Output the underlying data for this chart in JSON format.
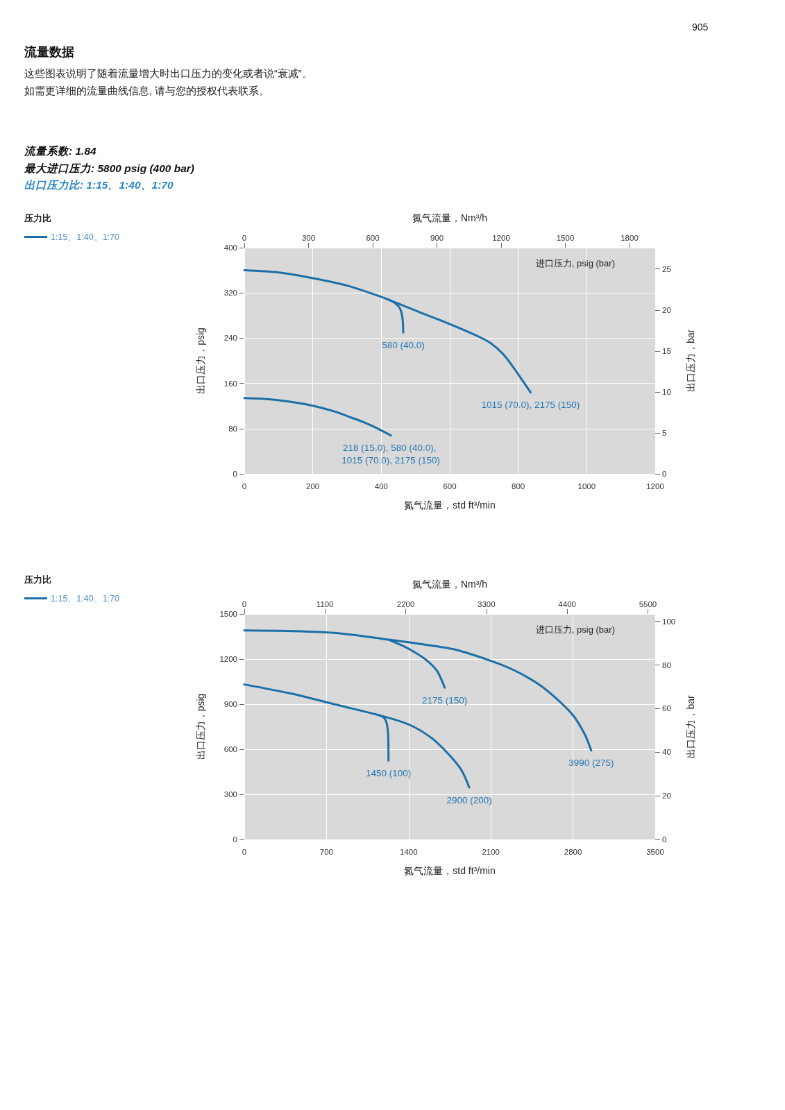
{
  "chart_data": [
    {
      "type": "line",
      "subtitle": "这些图表说明了随着流量增大时出口压力的变化或者说“衰减”。",
      "annotations": [
        "905",
        "流量数据",
        "如需更详细的流量曲线信息, 请与您的授权代表联系。",
        "流量系数: 1.84",
        "最大进口压力: 5800 psig (400 bar)",
        "出口压力比: 1:15、1:40、1:70",
        "进口压力, psig (bar)",
        {
          "text": "580 (40.0)",
          "x": 464,
          "y": 250
        },
        {
          "text": "1015 (70.0), 2175 (150)",
          "x": 836,
          "y": 144
        },
        {
          "text": "218 (15.0), 580 (40.0), 1015 (70.0), 2175 (150)",
          "x": 428,
          "y": 68
        }
      ],
      "xlabel": "氮气流量，std ft³/min",
      "x2label": "氮气流量，Nm³/h",
      "ylabel": "出口压力，psig",
      "y2label": "出口压力，bar",
      "legend_title": "压力比",
      "legend": "top left",
      "grid": true,
      "xlim": [
        0,
        1200
      ],
      "xticks": [
        0,
        200,
        400,
        600,
        800,
        1000,
        1200
      ],
      "x2lim": [
        0,
        1920
      ],
      "x2ticks": [
        0,
        300,
        600,
        900,
        1200,
        1500,
        1800
      ],
      "ylim": [
        0,
        400
      ],
      "yticks": [
        0,
        80,
        160,
        240,
        320,
        400
      ],
      "y2lim": [
        0,
        27.6
      ],
      "y2ticks": [
        0,
        5,
        10,
        15,
        20,
        25
      ],
      "series": [
        {
          "name": "1:15、1:40、1:70",
          "color": "#1b6fa8",
          "x": [
            0,
            100,
            200,
            300,
            400,
            450,
            520,
            600,
            680,
            720,
            760,
            800,
            836
          ],
          "values": [
            360,
            356,
            346,
            333,
            313,
            301,
            284,
            265,
            244,
            231,
            209,
            176,
            144
          ]
        },
        {
          "color": "#1b6fa8",
          "x": [
            413,
            440,
            455,
            462,
            464
          ],
          "values": [
            310,
            302,
            292,
            275,
            250
          ]
        },
        {
          "color": "#1b6fa8",
          "x": [
            0,
            70,
            130,
            180,
            230,
            270,
            310,
            350,
            390,
            428
          ],
          "values": [
            134,
            132,
            128,
            123,
            116,
            109,
            100,
            91,
            80,
            68
          ]
        }
      ]
    },
    {
      "type": "line",
      "annotations": [
        "进口压力, psig (bar)",
        {
          "text": "2175 (150)",
          "x": 1707,
          "y": 1010
        },
        {
          "text": "3990 (275)",
          "x": 2955,
          "y": 592
        },
        {
          "text": "1450 (100)",
          "x": 1228,
          "y": 525
        },
        {
          "text": "2900 (200)",
          "x": 1916,
          "y": 346
        }
      ],
      "xlabel": "氮气流量，std ft³/min",
      "x2label": "氮气流量，Nm³/h",
      "ylabel": "出口压力，psig",
      "y2label": "出口压力，bar",
      "legend_title": "压力比",
      "legend": "top left",
      "grid": true,
      "xlim": [
        0,
        3500
      ],
      "xticks": [
        0,
        700,
        1400,
        2100,
        2800,
        3500
      ],
      "x2lim": [
        0,
        5600
      ],
      "x2ticks": [
        0,
        1100,
        2200,
        3300,
        4400,
        5500
      ],
      "ylim": [
        0,
        1500
      ],
      "yticks": [
        0,
        300,
        600,
        900,
        1200,
        1500
      ],
      "y2lim": [
        0,
        103.4
      ],
      "y2ticks": [
        0,
        20,
        40,
        60,
        80,
        100
      ],
      "series": [
        {
          "name": "1:15、1:40、1:70",
          "color": "#1b6fa8",
          "x": [
            0,
            400,
            800,
            1200,
            1500,
            1800,
            2100,
            2300,
            2500,
            2650,
            2800,
            2900,
            2955
          ],
          "values": [
            1390,
            1386,
            1372,
            1332,
            1300,
            1262,
            1188,
            1125,
            1036,
            943,
            826,
            699,
            592
          ]
        },
        {
          "color": "#1b6fa8",
          "x": [
            1233,
            1350,
            1450,
            1550,
            1640,
            1707
          ],
          "values": [
            1328,
            1288,
            1246,
            1194,
            1123,
            1010
          ]
        },
        {
          "color": "#1b6fa8",
          "x": [
            0,
            400,
            800,
            1150,
            1400,
            1600,
            1750,
            1850,
            1916
          ],
          "values": [
            1031,
            970,
            893,
            826,
            765,
            672,
            558,
            460,
            346
          ]
        },
        {
          "color": "#1b6fa8",
          "x": [
            1147,
            1180,
            1205,
            1220,
            1226,
            1228
          ],
          "values": [
            826,
            815,
            792,
            740,
            681,
            525
          ]
        }
      ]
    }
  ]
}
